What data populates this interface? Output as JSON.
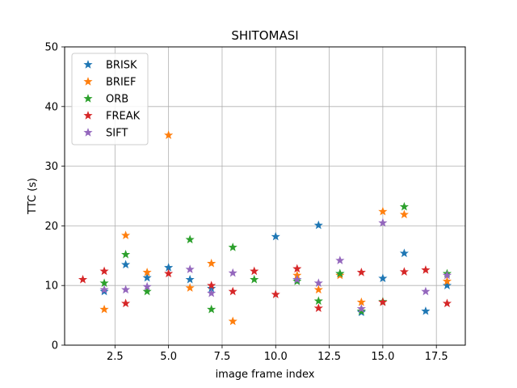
{
  "chart_data": {
    "type": "scatter",
    "title": "SHITOMASI",
    "xlabel": "image frame index",
    "ylabel": "TTC (s)",
    "xlim": [
      0.15,
      18.85
    ],
    "ylim": [
      0,
      50
    ],
    "xticks": [
      2.5,
      5.0,
      7.5,
      10.0,
      12.5,
      15.0,
      17.5
    ],
    "xtick_labels": [
      "2.5",
      "5.0",
      "7.5",
      "10.0",
      "12.5",
      "15.0",
      "17.5"
    ],
    "yticks": [
      0,
      10,
      20,
      30,
      40,
      50
    ],
    "ytick_labels": [
      "0",
      "10",
      "20",
      "30",
      "40",
      "50"
    ],
    "grid": true,
    "legend_position": "top-left",
    "marker": "star",
    "series": [
      {
        "name": "BRISK",
        "color": "#1f77b4",
        "points": [
          [
            2,
            9.0
          ],
          [
            3,
            13.5
          ],
          [
            4,
            11.3
          ],
          [
            5,
            13.0
          ],
          [
            6,
            11.0
          ],
          [
            7,
            9.5
          ],
          [
            10,
            18.2
          ],
          [
            11,
            11.0
          ],
          [
            12,
            20.1
          ],
          [
            13,
            12.0
          ],
          [
            14,
            5.5
          ],
          [
            15,
            11.2
          ],
          [
            16,
            15.4
          ],
          [
            17,
            5.7
          ],
          [
            18,
            10.0
          ]
        ]
      },
      {
        "name": "BRIEF",
        "color": "#ff7f0e",
        "points": [
          [
            2,
            6.0
          ],
          [
            3,
            18.4
          ],
          [
            4,
            12.2
          ],
          [
            5,
            35.2
          ],
          [
            6,
            9.6
          ],
          [
            7,
            13.7
          ],
          [
            8,
            4.0
          ],
          [
            11,
            11.7
          ],
          [
            12,
            9.3
          ],
          [
            13,
            11.7
          ],
          [
            14,
            7.2
          ],
          [
            15,
            22.4
          ],
          [
            16,
            21.9
          ],
          [
            18,
            10.7
          ]
        ]
      },
      {
        "name": "ORB",
        "color": "#2ca02c",
        "points": [
          [
            2,
            10.4
          ],
          [
            3,
            15.2
          ],
          [
            4,
            9.0
          ],
          [
            6,
            17.7
          ],
          [
            7,
            6.0
          ],
          [
            8,
            16.4
          ],
          [
            9,
            11.0
          ],
          [
            11,
            10.7
          ],
          [
            12,
            7.4
          ],
          [
            13,
            12.0
          ],
          [
            14,
            5.7
          ],
          [
            15,
            7.3
          ],
          [
            16,
            23.2
          ],
          [
            18,
            12.0
          ]
        ]
      },
      {
        "name": "FREAK",
        "color": "#d62728",
        "points": [
          [
            1,
            11.0
          ],
          [
            2,
            12.4
          ],
          [
            3,
            7.0
          ],
          [
            5,
            12.0
          ],
          [
            7,
            10.0
          ],
          [
            8,
            9.0
          ],
          [
            9,
            12.4
          ],
          [
            10,
            8.5
          ],
          [
            11,
            12.8
          ],
          [
            12,
            6.2
          ],
          [
            14,
            12.2
          ],
          [
            15,
            7.2
          ],
          [
            16,
            12.3
          ],
          [
            17,
            12.6
          ],
          [
            18,
            7.0
          ]
        ]
      },
      {
        "name": "SIFT",
        "color": "#9467bd",
        "points": [
          [
            2,
            9.3
          ],
          [
            3,
            9.3
          ],
          [
            4,
            9.8
          ],
          [
            6,
            12.7
          ],
          [
            7,
            8.7
          ],
          [
            8,
            12.1
          ],
          [
            11,
            11.0
          ],
          [
            12,
            10.4
          ],
          [
            13,
            14.2
          ],
          [
            14,
            6.1
          ],
          [
            15,
            20.5
          ],
          [
            17,
            9.0
          ],
          [
            18,
            11.7
          ]
        ]
      }
    ]
  }
}
